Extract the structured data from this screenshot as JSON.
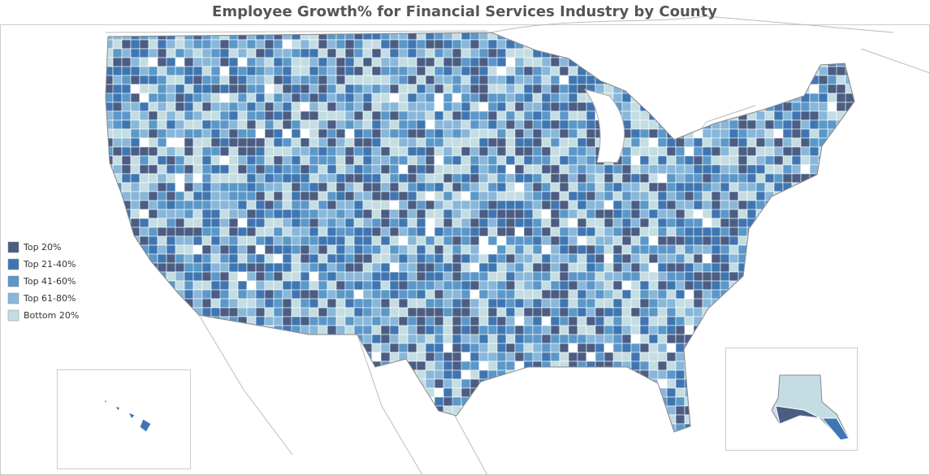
{
  "title": "Employee Growth% for Financial Services Industry by County",
  "legend": {
    "items": [
      {
        "label": "Top 20%",
        "color": "#4b5d83"
      },
      {
        "label": "Top 21-40%",
        "color": "#3f76b2"
      },
      {
        "label": "Top 41-60%",
        "color": "#5b98c9"
      },
      {
        "label": "Top 61-80%",
        "color": "#88b7da"
      },
      {
        "label": "Bottom 20%",
        "color": "#c4dde2"
      }
    ]
  }
}
